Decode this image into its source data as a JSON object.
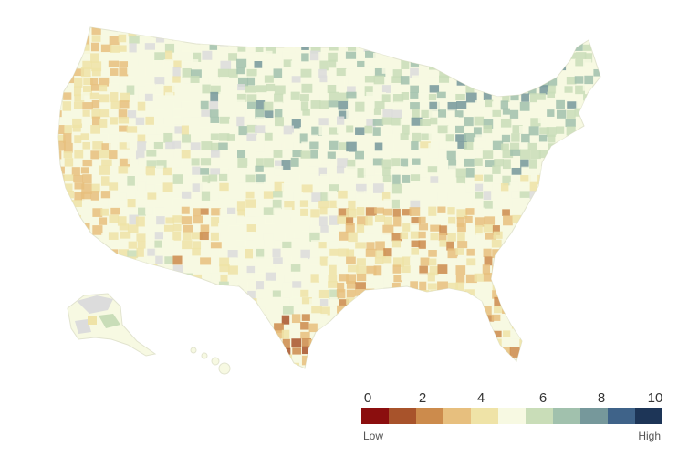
{
  "map": {
    "type": "choropleth",
    "region": "United States counties",
    "no_data_color": "#dcdcdc",
    "land_base_color": "#f7f9e2"
  },
  "legend": {
    "ticks": [
      "0",
      "2",
      "4",
      "6",
      "8",
      "10"
    ],
    "low_label": "Low",
    "high_label": "High",
    "colors": [
      "#8b0e0e",
      "#a8532b",
      "#cc8b4c",
      "#e7bf7e",
      "#efe3a7",
      "#f7f9e2",
      "#c9ddb8",
      "#a1c1ad",
      "#76989b",
      "#3f6389",
      "#1d3557"
    ]
  }
}
